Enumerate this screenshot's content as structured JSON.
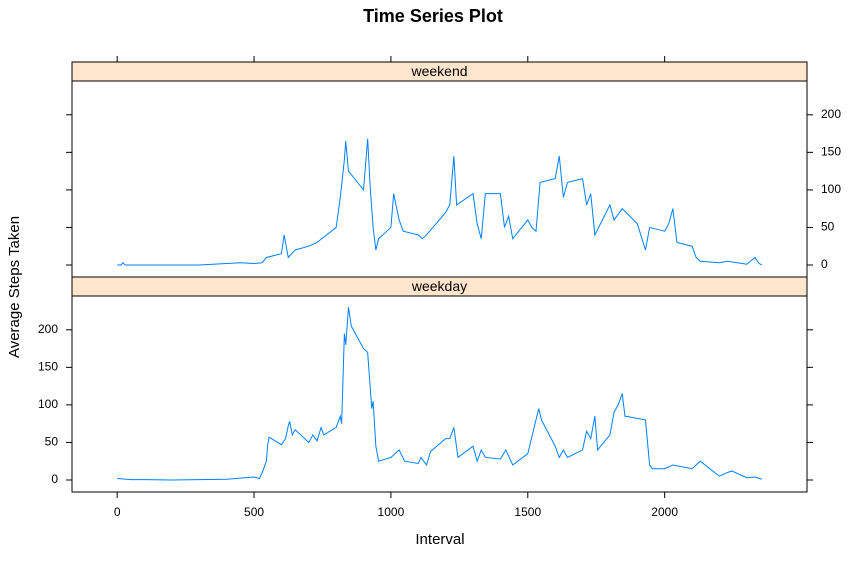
{
  "chart_data": {
    "type": "line",
    "title": "Time Series Plot",
    "xlabel": "Interval",
    "ylabel": "Average Steps Taken",
    "xlim": [
      -165,
      2520
    ],
    "xticks": [
      0,
      500,
      1000,
      1500,
      2000
    ],
    "ylim": [
      -16,
      245
    ],
    "yticks": [
      0,
      50,
      100,
      150,
      200
    ],
    "panels": [
      {
        "name": "weekend",
        "color": "#0080ff",
        "x": [
          0,
          15,
          20,
          30,
          100,
          300,
          400,
          450,
          500,
          530,
          545,
          600,
          610,
          625,
          650,
          700,
          730,
          800,
          815,
          830,
          835,
          845,
          900,
          915,
          925,
          935,
          945,
          955,
          1000,
          1010,
          1030,
          1045,
          1100,
          1115,
          1130,
          1200,
          1215,
          1230,
          1240,
          1300,
          1315,
          1330,
          1345,
          1400,
          1415,
          1430,
          1445,
          1500,
          1515,
          1530,
          1545,
          1600,
          1615,
          1630,
          1645,
          1700,
          1715,
          1730,
          1745,
          1800,
          1815,
          1845,
          1900,
          1930,
          1945,
          2000,
          2015,
          2030,
          2045,
          2100,
          2115,
          2130,
          2200,
          2230,
          2300,
          2330,
          2345,
          2355
        ],
        "values": [
          0,
          0,
          3,
          0,
          0,
          0,
          2,
          3,
          2,
          3,
          10,
          15,
          40,
          10,
          20,
          25,
          30,
          50,
          90,
          140,
          165,
          125,
          100,
          168,
          100,
          50,
          20,
          35,
          50,
          95,
          60,
          45,
          40,
          35,
          40,
          70,
          80,
          145,
          80,
          95,
          55,
          35,
          95,
          95,
          50,
          65,
          35,
          60,
          50,
          45,
          110,
          115,
          145,
          90,
          110,
          115,
          80,
          95,
          40,
          80,
          60,
          75,
          55,
          20,
          50,
          45,
          55,
          75,
          30,
          25,
          10,
          5,
          3,
          5,
          1,
          10,
          2,
          0
        ]
      },
      {
        "name": "weekday",
        "color": "#0080ff",
        "x": [
          0,
          50,
          100,
          200,
          300,
          400,
          500,
          520,
          530,
          545,
          550,
          555,
          600,
          615,
          625,
          630,
          640,
          650,
          700,
          715,
          730,
          745,
          755,
          800,
          815,
          820,
          830,
          835,
          845,
          850,
          855,
          900,
          915,
          930,
          935,
          945,
          955,
          1000,
          1030,
          1050,
          1100,
          1110,
          1130,
          1145,
          1200,
          1215,
          1230,
          1245,
          1300,
          1315,
          1330,
          1345,
          1400,
          1420,
          1445,
          1500,
          1530,
          1540,
          1550,
          1600,
          1615,
          1630,
          1645,
          1700,
          1715,
          1730,
          1745,
          1755,
          1800,
          1815,
          1830,
          1845,
          1855,
          1930,
          1945,
          1955,
          2000,
          2030,
          2100,
          2130,
          2200,
          2230,
          2245,
          2300,
          2330,
          2355
        ],
        "values": [
          2,
          0.5,
          0.4,
          0,
          0.5,
          1,
          4,
          2,
          10,
          25,
          47,
          57,
          47,
          55,
          72,
          78,
          60,
          67,
          50,
          60,
          52,
          70,
          60,
          70,
          85,
          75,
          195,
          180,
          230,
          218,
          205,
          175,
          170,
          95,
          105,
          45,
          25,
          30,
          40,
          25,
          22,
          30,
          20,
          38,
          55,
          55,
          70,
          30,
          45,
          25,
          40,
          30,
          28,
          40,
          20,
          35,
          80,
          95,
          80,
          45,
          30,
          40,
          30,
          40,
          65,
          55,
          85,
          40,
          60,
          90,
          100,
          115,
          85,
          80,
          20,
          15,
          15,
          20,
          15,
          25,
          5,
          10,
          12,
          3,
          4,
          1
        ]
      }
    ]
  }
}
